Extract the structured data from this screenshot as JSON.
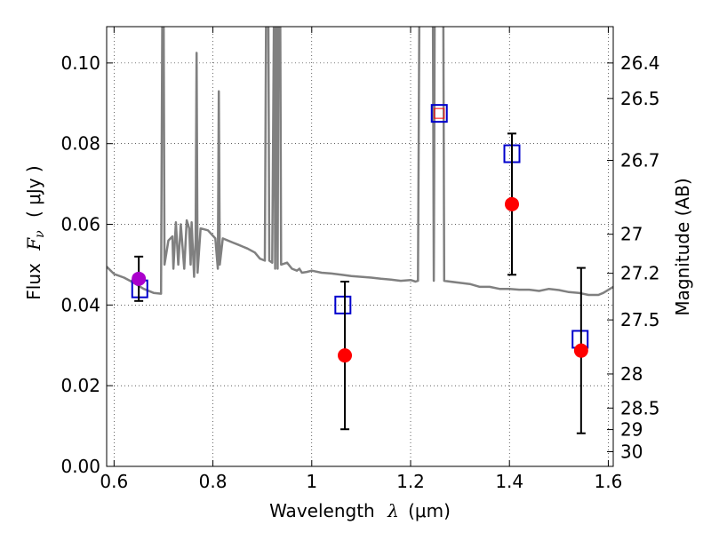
{
  "chart_data": {
    "type": "scatter",
    "xlabel_text": "Wavelength",
    "xlabel_symbol": "λ",
    "xlabel_unit": "(μm)",
    "ylabel_text": "Flux",
    "ylabel_symbol": "F",
    "ylabel_subscript": "ν",
    "ylabel_unit": "( μJy )",
    "y2label": "Magnitude (AB)",
    "xlim": [
      0.585,
      1.61
    ],
    "ylim": [
      0.0,
      0.109
    ],
    "grid": true,
    "x_ticks": [
      {
        "value": 0.6,
        "label": "0.6"
      },
      {
        "value": 0.8,
        "label": "0.8"
      },
      {
        "value": 1.0,
        "label": "1"
      },
      {
        "value": 1.2,
        "label": "1.2"
      },
      {
        "value": 1.4,
        "label": "1.4"
      },
      {
        "value": 1.6,
        "label": "1.6"
      }
    ],
    "y_ticks": [
      {
        "value": 0.0,
        "label": "0.00"
      },
      {
        "value": 0.02,
        "label": "0.02"
      },
      {
        "value": 0.04,
        "label": "0.04"
      },
      {
        "value": 0.06,
        "label": "0.06"
      },
      {
        "value": 0.08,
        "label": "0.08"
      },
      {
        "value": 0.1,
        "label": "0.10"
      }
    ],
    "y2_ticks": [
      {
        "mag": 26.4,
        "label": "26.4"
      },
      {
        "mag": 26.5,
        "label": "26.5"
      },
      {
        "mag": 26.7,
        "label": "26.7"
      },
      {
        "mag": 27.0,
        "label": "27"
      },
      {
        "mag": 27.2,
        "label": "27.2"
      },
      {
        "mag": 27.5,
        "label": "27.5"
      },
      {
        "mag": 28.0,
        "label": "28"
      },
      {
        "mag": 28.5,
        "label": "28.5"
      },
      {
        "mag": 29.0,
        "label": "29"
      },
      {
        "mag": 30.0,
        "label": "30"
      }
    ],
    "colors": {
      "model": "#808080",
      "observed": "#ff0000",
      "model_band": "#0000cc",
      "purple": "#aa00cc",
      "errorbar": "#000000"
    },
    "observed_points": [
      {
        "x": 0.65,
        "y": 0.0465,
        "err": 0.0055,
        "color": "purple"
      },
      {
        "x": 1.067,
        "y": 0.0275,
        "err": 0.0183
      },
      {
        "x": 1.405,
        "y": 0.065,
        "err": 0.0175
      },
      {
        "x": 1.545,
        "y": 0.0287,
        "err": 0.0205
      }
    ],
    "model_bands": [
      {
        "x": 0.652,
        "y": 0.044
      },
      {
        "x": 1.063,
        "y": 0.04
      },
      {
        "x": 1.258,
        "y": 0.0875
      },
      {
        "x": 1.405,
        "y": 0.0775
      },
      {
        "x": 1.543,
        "y": 0.0315
      }
    ],
    "model_inner_red": [
      {
        "x": 1.258,
        "y": 0.0875
      }
    ],
    "model_spectrum": [
      [
        0.585,
        0.0495
      ],
      [
        0.6,
        0.0477
      ],
      [
        0.62,
        0.0468
      ],
      [
        0.64,
        0.0455
      ],
      [
        0.66,
        0.044
      ],
      [
        0.68,
        0.043
      ],
      [
        0.695,
        0.0428
      ],
      [
        0.698,
        0.12
      ],
      [
        0.7,
        0.12
      ],
      [
        0.702,
        0.05
      ],
      [
        0.71,
        0.056
      ],
      [
        0.718,
        0.057
      ],
      [
        0.72,
        0.049
      ],
      [
        0.725,
        0.0605
      ],
      [
        0.73,
        0.05
      ],
      [
        0.735,
        0.06
      ],
      [
        0.742,
        0.049
      ],
      [
        0.747,
        0.061
      ],
      [
        0.752,
        0.059
      ],
      [
        0.755,
        0.05
      ],
      [
        0.757,
        0.0605
      ],
      [
        0.762,
        0.047
      ],
      [
        0.765,
        0.056
      ],
      [
        0.767,
        0.1025
      ],
      [
        0.769,
        0.048
      ],
      [
        0.775,
        0.059
      ],
      [
        0.79,
        0.0585
      ],
      [
        0.805,
        0.0565
      ],
      [
        0.81,
        0.049
      ],
      [
        0.812,
        0.093
      ],
      [
        0.814,
        0.05
      ],
      [
        0.82,
        0.0565
      ],
      [
        0.84,
        0.0555
      ],
      [
        0.85,
        0.055
      ],
      [
        0.86,
        0.0545
      ],
      [
        0.87,
        0.054
      ],
      [
        0.885,
        0.053
      ],
      [
        0.895,
        0.0515
      ],
      [
        0.905,
        0.051
      ],
      [
        0.908,
        0.12
      ],
      [
        0.912,
        0.12
      ],
      [
        0.914,
        0.051
      ],
      [
        0.92,
        0.0505
      ],
      [
        0.924,
        0.12
      ],
      [
        0.926,
        0.049
      ],
      [
        0.929,
        0.12
      ],
      [
        0.931,
        0.049
      ],
      [
        0.933,
        0.12
      ],
      [
        0.936,
        0.12
      ],
      [
        0.938,
        0.05
      ],
      [
        0.95,
        0.0505
      ],
      [
        0.96,
        0.049
      ],
      [
        0.97,
        0.0485
      ],
      [
        0.975,
        0.049
      ],
      [
        0.98,
        0.048
      ],
      [
        0.99,
        0.0482
      ],
      [
        1.0,
        0.0485
      ],
      [
        1.02,
        0.048
      ],
      [
        1.04,
        0.0478
      ],
      [
        1.06,
        0.0475
      ],
      [
        1.08,
        0.0472
      ],
      [
        1.1,
        0.047
      ],
      [
        1.12,
        0.0468
      ],
      [
        1.14,
        0.0465
      ],
      [
        1.16,
        0.0463
      ],
      [
        1.18,
        0.046
      ],
      [
        1.2,
        0.0462
      ],
      [
        1.21,
        0.0458
      ],
      [
        1.215,
        0.046
      ],
      [
        1.218,
        0.12
      ],
      [
        1.222,
        0.12
      ],
      [
        1.232,
        0.12
      ],
      [
        1.238,
        0.12
      ],
      [
        1.242,
        0.12
      ],
      [
        1.245,
        0.12
      ],
      [
        1.247,
        0.046
      ],
      [
        1.249,
        0.12
      ],
      [
        1.262,
        0.12
      ],
      [
        1.266,
        0.12
      ],
      [
        1.268,
        0.046
      ],
      [
        1.28,
        0.0458
      ],
      [
        1.3,
        0.0455
      ],
      [
        1.32,
        0.0452
      ],
      [
        1.34,
        0.0445
      ],
      [
        1.36,
        0.0445
      ],
      [
        1.38,
        0.044
      ],
      [
        1.4,
        0.044
      ],
      [
        1.42,
        0.0438
      ],
      [
        1.44,
        0.0438
      ],
      [
        1.46,
        0.0435
      ],
      [
        1.48,
        0.044
      ],
      [
        1.5,
        0.0437
      ],
      [
        1.52,
        0.0432
      ],
      [
        1.54,
        0.043
      ],
      [
        1.56,
        0.0425
      ],
      [
        1.58,
        0.0425
      ],
      [
        1.59,
        0.043
      ],
      [
        1.61,
        0.0445
      ]
    ]
  }
}
